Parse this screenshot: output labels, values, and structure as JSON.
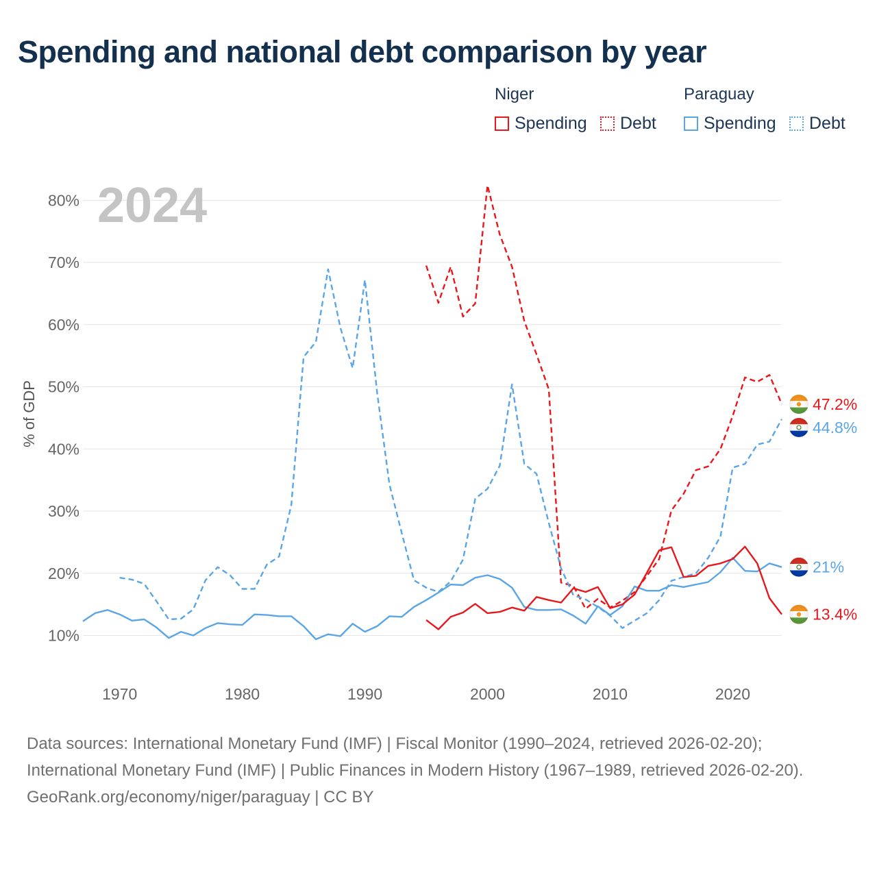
{
  "title": "Spending and national debt comparison by year",
  "legend": {
    "groups": [
      {
        "name": "Niger",
        "items": [
          {
            "label": "Spending",
            "style": "solid",
            "color": "#e8171b"
          },
          {
            "label": "Debt",
            "style": "dotted",
            "color": "#e8171b"
          }
        ]
      },
      {
        "name": "Paraguay",
        "items": [
          {
            "label": "Spending",
            "style": "solid",
            "color": "#5aa5e6"
          },
          {
            "label": "Debt",
            "style": "dotted",
            "color": "#5aa5e6"
          }
        ]
      }
    ]
  },
  "footer": {
    "sources": "Data sources: International Monetary Fund (IMF) | Fiscal Monitor (1990–2024, retrieved 2026-02-20); International Monetary Fund (IMF) | Public Finances in Modern History (1967–1989, retrieved 2026-02-20).",
    "credit": "GeoRank.org/economy/niger/paraguay | CC BY"
  },
  "chart_data": {
    "type": "line",
    "title": "Spending and national debt comparison by year",
    "year_label": "2024",
    "xlabel": "",
    "ylabel": "% of GDP",
    "xlim": [
      1967,
      2024
    ],
    "ylim": [
      4,
      84
    ],
    "x_ticks": [
      1970,
      1980,
      1990,
      2000,
      2010,
      2020
    ],
    "y_ticks": [
      10,
      20,
      30,
      40,
      50,
      60,
      70,
      80
    ],
    "y_tick_labels": [
      "10%",
      "20%",
      "30%",
      "40%",
      "50%",
      "60%",
      "70%",
      "80%"
    ],
    "grid": true,
    "series": [
      {
        "name": "Niger Debt",
        "country": "Niger",
        "metric": "Debt",
        "color": "#e8171b",
        "dashed": true,
        "end_label": "47.2%",
        "x": [
          1995,
          1996,
          1997,
          1998,
          1999,
          2000,
          2001,
          2002,
          2003,
          2004,
          2005,
          2006,
          2007,
          2008,
          2009,
          2010,
          2011,
          2012,
          2013,
          2014,
          2015,
          2016,
          2017,
          2018,
          2019,
          2020,
          2021,
          2022,
          2023,
          2024
        ],
        "values": [
          69.5,
          63.5,
          69.3,
          61.3,
          63.4,
          82.4,
          74.5,
          69.3,
          60.6,
          55.2,
          49.6,
          18.5,
          18.0,
          14.3,
          15.9,
          14.5,
          15.6,
          17.0,
          19.6,
          22.3,
          30.1,
          32.8,
          36.6,
          37.2,
          40.0,
          45.3,
          51.5,
          50.8,
          51.9,
          47.2
        ]
      },
      {
        "name": "Paraguay Debt",
        "country": "Paraguay",
        "metric": "Debt",
        "color": "#5aa5e6",
        "dashed": true,
        "end_label": "44.8%",
        "x": [
          1970,
          1971,
          1972,
          1973,
          1974,
          1975,
          1976,
          1977,
          1978,
          1979,
          1980,
          1981,
          1982,
          1983,
          1984,
          1985,
          1986,
          1987,
          1988,
          1989,
          1990,
          1991,
          1992,
          1993,
          1994,
          1995,
          1996,
          1997,
          1998,
          1999,
          2000,
          2001,
          2002,
          2003,
          2004,
          2005,
          2006,
          2007,
          2008,
          2009,
          2010,
          2011,
          2012,
          2013,
          2014,
          2015,
          2016,
          2017,
          2018,
          2019,
          2020,
          2021,
          2022,
          2023,
          2024
        ],
        "values": [
          19.3,
          19.0,
          18.3,
          15.5,
          12.6,
          12.7,
          14.2,
          18.9,
          21.0,
          19.7,
          17.5,
          17.5,
          21.4,
          22.7,
          31.0,
          54.8,
          57.2,
          68.9,
          59.5,
          53.0,
          67.2,
          49.0,
          34.3,
          26.5,
          18.9,
          17.7,
          17.0,
          18.7,
          22.2,
          32.0,
          33.6,
          37.3,
          50.4,
          37.6,
          36.0,
          28.1,
          20.8,
          16.5,
          15.8,
          14.6,
          13.2,
          11.2,
          12.4,
          13.6,
          15.7,
          18.8,
          19.4,
          20.0,
          22.5,
          25.9,
          37.0,
          37.6,
          40.7,
          41.2,
          44.8
        ]
      },
      {
        "name": "Paraguay Spending",
        "country": "Paraguay",
        "metric": "Spending",
        "color": "#5aa5e6",
        "dashed": false,
        "end_label": "21%",
        "x": [
          1967,
          1968,
          1969,
          1970,
          1971,
          1972,
          1973,
          1974,
          1975,
          1976,
          1977,
          1978,
          1979,
          1980,
          1981,
          1982,
          1983,
          1984,
          1985,
          1986,
          1987,
          1988,
          1989,
          1990,
          1991,
          1992,
          1993,
          1994,
          1995,
          1996,
          1997,
          1998,
          1999,
          2000,
          2001,
          2002,
          2003,
          2004,
          2005,
          2006,
          2007,
          2008,
          2009,
          2010,
          2011,
          2012,
          2013,
          2014,
          2015,
          2016,
          2017,
          2018,
          2019,
          2020,
          2021,
          2022,
          2023,
          2024
        ],
        "values": [
          12.3,
          13.6,
          14.1,
          13.4,
          12.4,
          12.6,
          11.3,
          9.6,
          10.6,
          10.0,
          11.2,
          12.0,
          11.8,
          11.7,
          13.4,
          13.3,
          13.1,
          13.1,
          11.5,
          9.4,
          10.2,
          9.9,
          11.9,
          10.6,
          11.5,
          13.1,
          13.0,
          14.6,
          15.7,
          16.9,
          18.2,
          18.1,
          19.3,
          19.7,
          19.1,
          17.7,
          14.6,
          14.1,
          14.1,
          14.2,
          13.2,
          11.9,
          14.7,
          13.3,
          14.7,
          17.9,
          17.2,
          17.2,
          18.1,
          17.8,
          18.2,
          18.6,
          20.2,
          22.5,
          20.4,
          20.3,
          21.6,
          21.0
        ]
      },
      {
        "name": "Niger Spending",
        "country": "Niger",
        "metric": "Spending",
        "color": "#e8171b",
        "dashed": false,
        "end_label": "13.4%",
        "x": [
          1995,
          1996,
          1997,
          1998,
          1999,
          2000,
          2001,
          2002,
          2003,
          2004,
          2005,
          2006,
          2007,
          2008,
          2009,
          2010,
          2011,
          2012,
          2013,
          2014,
          2015,
          2016,
          2017,
          2018,
          2019,
          2020,
          2021,
          2022,
          2023,
          2024
        ],
        "values": [
          12.5,
          11.0,
          13.0,
          13.7,
          15.1,
          13.6,
          13.8,
          14.5,
          14.0,
          16.2,
          15.7,
          15.3,
          17.6,
          17.0,
          17.8,
          14.4,
          15.0,
          16.6,
          20.1,
          23.7,
          24.2,
          19.4,
          19.6,
          21.2,
          21.6,
          22.3,
          24.3,
          21.6,
          16.0,
          13.4
        ]
      }
    ]
  }
}
